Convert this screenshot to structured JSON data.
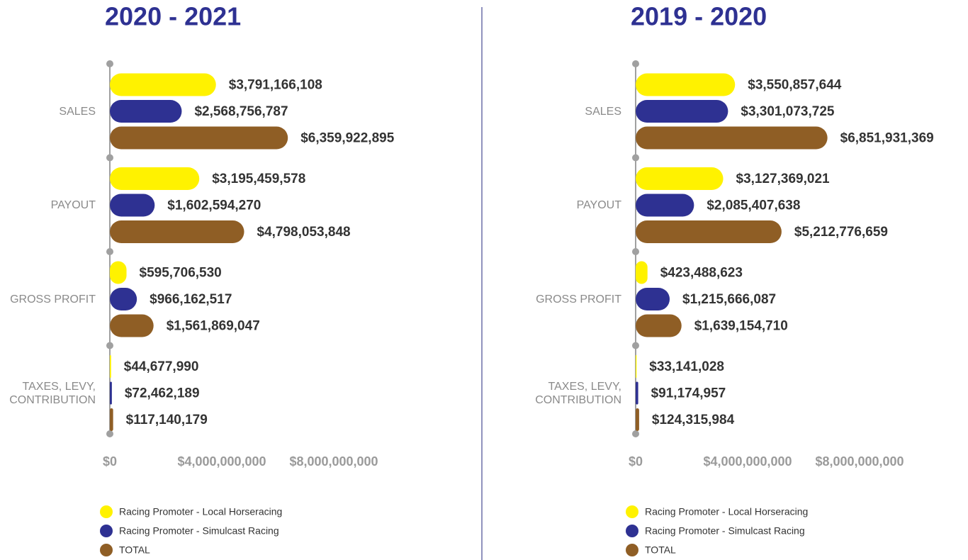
{
  "chart_data": [
    {
      "type": "hbar",
      "title": "2020 - 2021",
      "categories": [
        "SALES",
        "PAYOUT",
        "GROSS PROFIT",
        "TAXES, LEVY, CONTRIBUTION"
      ],
      "series": [
        {
          "name": "Racing Promoter - Local Horseracing",
          "color": "#fff200",
          "values": [
            3791166108,
            3195459578,
            595706530,
            44677990
          ],
          "value_labels": [
            "$3,791,166,108",
            "$3,195,459,578",
            "$595,706,530",
            "$44,677,990"
          ]
        },
        {
          "name": "Racing Promoter - Simulcast Racing",
          "color": "#2e3192",
          "values": [
            2568756787,
            1602594270,
            966162517,
            72462189
          ],
          "value_labels": [
            "$2,568,756,787",
            "$1,602,594,270",
            "$966,162,517",
            "$72,462,189"
          ]
        },
        {
          "name": "TOTAL",
          "color": "#8f5e25",
          "values": [
            6359922895,
            4798053848,
            1561869047,
            117140179
          ],
          "value_labels": [
            "$6,359,922,895",
            "$4,798,053,848",
            "$1,561,869,047",
            "$117,140,179"
          ]
        }
      ],
      "xlim": [
        0,
        8000000000
      ],
      "xticks": [
        {
          "value": 0,
          "label": "$0"
        },
        {
          "value": 4000000000,
          "label": "$4,000,000,000"
        },
        {
          "value": 8000000000,
          "label": "$8,000,000,000"
        }
      ]
    },
    {
      "type": "hbar",
      "title": "2019 - 2020",
      "categories": [
        "SALES",
        "PAYOUT",
        "GROSS PROFIT",
        "TAXES, LEVY, CONTRIBUTION"
      ],
      "series": [
        {
          "name": "Racing Promoter - Local Horseracing",
          "color": "#fff200",
          "values": [
            3550857644,
            3127369021,
            423488623,
            33141028
          ],
          "value_labels": [
            "$3,550,857,644",
            "$3,127,369,021",
            "$423,488,623",
            "$33,141,028"
          ]
        },
        {
          "name": "Racing Promoter - Simulcast Racing",
          "color": "#2e3192",
          "values": [
            3301073725,
            2085407638,
            1215666087,
            91174957
          ],
          "value_labels": [
            "$3,301,073,725",
            "$2,085,407,638",
            "$1,215,666,087",
            "$91,174,957"
          ]
        },
        {
          "name": "TOTAL",
          "color": "#8f5e25",
          "values": [
            6851931369,
            5212776659,
            1639154710,
            124315984
          ],
          "value_labels": [
            "$6,851,931,369",
            "$5,212,776,659",
            "$1,639,154,710",
            "$124,315,984"
          ]
        }
      ],
      "xlim": [
        0,
        8000000000
      ],
      "xticks": [
        {
          "value": 0,
          "label": "$0"
        },
        {
          "value": 4000000000,
          "label": "$4,000,000,000"
        },
        {
          "value": 8000000000,
          "label": "$8,000,000,000"
        }
      ]
    }
  ]
}
